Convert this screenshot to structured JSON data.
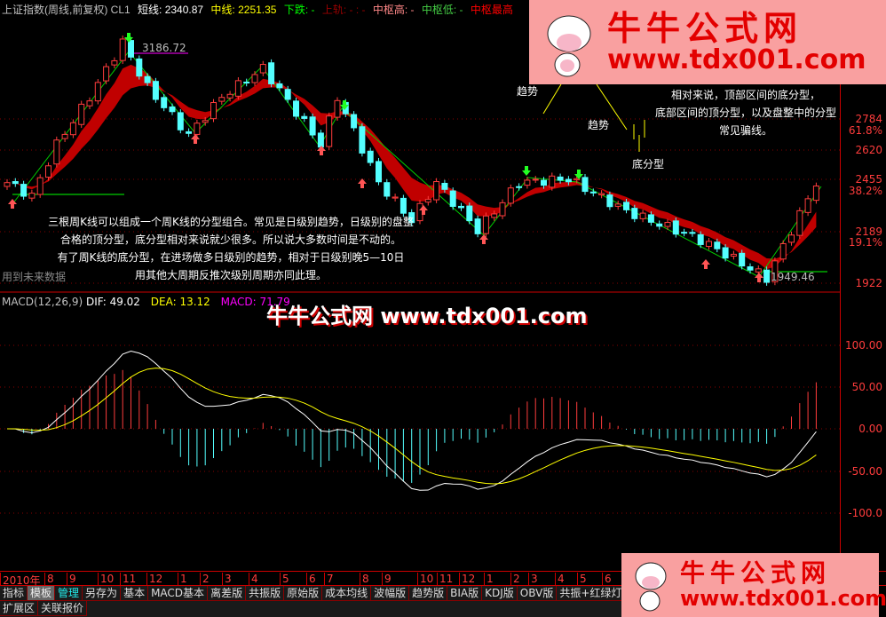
{
  "header": {
    "title": "上证指数(周线,前复权) CL1",
    "short_label": "短线: 2340.87",
    "mid_label": "中线: 2251.35",
    "down_label": "下跌: -",
    "upper_label": "上轨: - : -",
    "zh_high_label": "中枢高: -",
    "zh_low_label": "中枢低: -",
    "zh_max_label": "中枢最高"
  },
  "annotations": {
    "note_left": [
      "三根周K线可以组成一个周K线的分型组合。常见是日级别趋势，日级别的盘整",
      "合格的顶分型，底分型相对来说就少很多。所以说大多数时间是不动的。",
      "有了周K线的底分型，在进场做多日级别的趋势，相对于日级别晚5—10日",
      "用其他大周期反推次级别周期亦同此理。"
    ],
    "note_right": [
      "相对来说，顶部区间的底分型，",
      "底部区间的顶分型，以及盘整中的分型",
      "常见骗线。"
    ],
    "trend1": "趋势",
    "trend2": "趋势",
    "bottom_fractal": "底分型",
    "future_data": "用到未来数据",
    "high_label": "3186.72",
    "low_label": "1949.46"
  },
  "price_axis": [
    {
      "label": "2784",
      "pct": "61.8%"
    },
    {
      "label": "2620",
      "pct": ""
    },
    {
      "label": "2455",
      "pct": "38.2%"
    },
    {
      "label": "2189",
      "pct": "19.1%"
    },
    {
      "label": "1922",
      "pct": ""
    }
  ],
  "macd": {
    "title": "MACD(12,26,9)",
    "dif": "DIF: 49.02",
    "dea": "DEA: 13.12",
    "macd": "MACD: 71.79",
    "axis": [
      "100.00",
      "50.00",
      "0.00",
      "-50.00",
      "-100.0"
    ],
    "watermark": "牛牛公式网 www.tdx001.com"
  },
  "dates": [
    "2010年",
    "8",
    "9",
    "10",
    "11",
    "12",
    "1",
    "2",
    "3",
    "4",
    "5",
    "6",
    "7",
    "8",
    "9",
    "10",
    "11",
    "12",
    "1",
    "2",
    "3",
    "4",
    "5",
    "6"
  ],
  "tabs": [
    "指标",
    "模板",
    "管理",
    "另存为",
    "基本",
    "MACD基本",
    "离差版",
    "共振版",
    "原始版",
    "成本均线",
    "波幅版",
    "趋势版",
    "BIA版",
    "KDJ版",
    "OBV版",
    "共振+红绿灯"
  ],
  "tabs2": [
    "扩展区",
    "关联报价"
  ],
  "ad": {
    "name": "牛牛公式网",
    "url": "www.tdx001.com"
  },
  "colors": {
    "up": "#ff3c3c",
    "down": "#54ffff",
    "band": "#c00000",
    "dif": "#ffffff",
    "dea": "#ffff00"
  },
  "chart_data": {
    "type": "candlestick",
    "weeks": 99,
    "keypoints": [
      [
        0,
        2450
      ],
      [
        3,
        2380
      ],
      [
        6,
        2650
      ],
      [
        10,
        2900
      ],
      [
        14,
        3186
      ],
      [
        17,
        2950
      ],
      [
        22,
        2700
      ],
      [
        26,
        2900
      ],
      [
        31,
        3050
      ],
      [
        38,
        2650
      ],
      [
        40,
        2900
      ],
      [
        45,
        2450
      ],
      [
        49,
        2250
      ],
      [
        52,
        2450
      ],
      [
        57,
        2200
      ],
      [
        62,
        2450
      ],
      [
        68,
        2470
      ],
      [
        75,
        2300
      ],
      [
        84,
        2150
      ],
      [
        92,
        1949
      ],
      [
        98,
        2450
      ]
    ]
  }
}
